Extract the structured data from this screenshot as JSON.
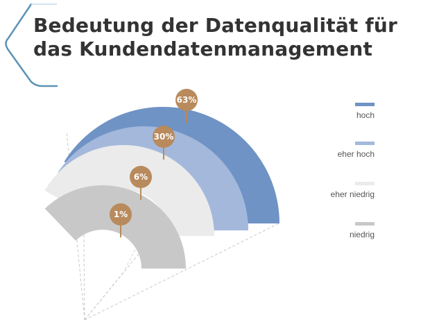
{
  "header": {
    "title_line1": "Bedeutung der Datenqualität für",
    "title_line2": "das Kundendatenmanagement"
  },
  "colors": {
    "hoch": "#6f93c4",
    "eher_hoch": "#a3b8db",
    "eher_niedrig": "#ebebeb",
    "niedrig": "#c8c8c8",
    "pin": "#b88a5c",
    "accent_line": "#5b93b5"
  },
  "chart_data": {
    "type": "pie",
    "variant": "nested-fan",
    "categories": [
      "hoch",
      "eher hoch",
      "eher niedrig",
      "niedrig"
    ],
    "values": [
      63,
      30,
      6,
      1
    ],
    "unit": "%",
    "labels": [
      "63%",
      "30%",
      "6%",
      "1%"
    ],
    "legend_placement": "right"
  },
  "legend": {
    "items": [
      {
        "label": "hoch"
      },
      {
        "label": "eher hoch"
      },
      {
        "label": "eher niedrig"
      },
      {
        "label": "niedrig"
      }
    ]
  }
}
